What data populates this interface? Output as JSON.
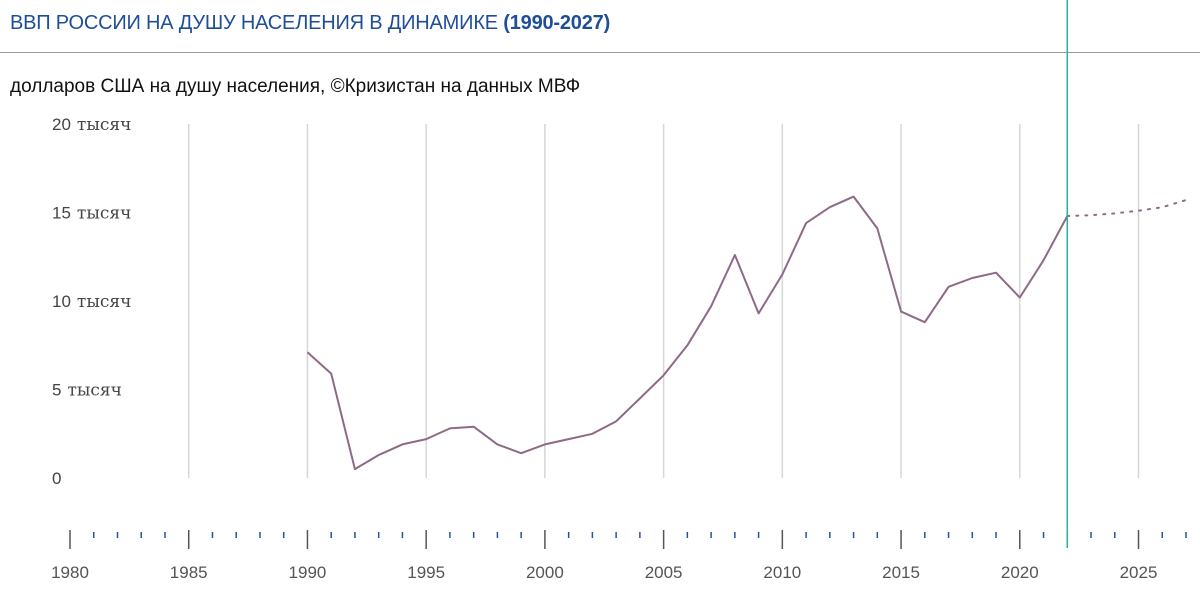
{
  "header": {
    "title_main": "ВВП РОССИИ НА ДУШУ НАСЕЛЕНИЯ В ДИНАМИКЕ",
    "title_years": "(1990-2027)",
    "subtitle": "долларов США на душу населения, ©Кризистан на данных МВФ"
  },
  "colors": {
    "title": "#1f4e99",
    "series": "#8e6a86",
    "marker": "#27b3a0",
    "grid": "#d6d6d6"
  },
  "chart_data": {
    "type": "line",
    "title": "ВВП РОССИИ НА ДУШУ НАСЕЛЕНИЯ В ДИНАМИКЕ (1990-2027)",
    "xlabel": "",
    "ylabel": "",
    "xlim": [
      1980,
      2027
    ],
    "ylim": [
      0,
      20000
    ],
    "y_ticks": [
      {
        "value": 0,
        "num": "0",
        "unit": ""
      },
      {
        "value": 5000,
        "num": "5",
        "unit": "тысяч"
      },
      {
        "value": 10000,
        "num": "10",
        "unit": "тысяч"
      },
      {
        "value": 15000,
        "num": "15",
        "unit": "тысяч"
      },
      {
        "value": 20000,
        "num": "20",
        "unit": "тысяч"
      }
    ],
    "x_tick_labels": [
      "1980",
      "1985",
      "1990",
      "1995",
      "2000",
      "2005",
      "2010",
      "2015",
      "2020",
      "2025"
    ],
    "x_gridlines": [
      1985,
      1990,
      1995,
      2000,
      2005,
      2010,
      2015,
      2020,
      2025
    ],
    "marker_year": 2022,
    "grid": true,
    "series": [
      {
        "style": "solid",
        "x": [
          1990,
          1991,
          1992,
          1993,
          1994,
          1995,
          1996,
          1997,
          1998,
          1999,
          2000,
          2001,
          2002,
          2003,
          2004,
          2005,
          2006,
          2007,
          2008,
          2009,
          2010,
          2011,
          2012,
          2013,
          2014,
          2015,
          2016,
          2017,
          2018,
          2019,
          2020,
          2021,
          2022
        ],
        "y": [
          7100,
          5900,
          500,
          1300,
          1900,
          2200,
          2800,
          2900,
          1900,
          1400,
          1900,
          2200,
          2500,
          3200,
          4500,
          5800,
          7500,
          9700,
          12600,
          9300,
          11500,
          14400,
          15300,
          15900,
          14100,
          9400,
          8800,
          10800,
          11300,
          11600,
          10200,
          12300,
          14800
        ]
      },
      {
        "style": "dotted",
        "x": [
          2022,
          2023,
          2024,
          2025,
          2026,
          2027
        ],
        "y": [
          14800,
          14850,
          14950,
          15100,
          15300,
          15700
        ]
      }
    ]
  }
}
